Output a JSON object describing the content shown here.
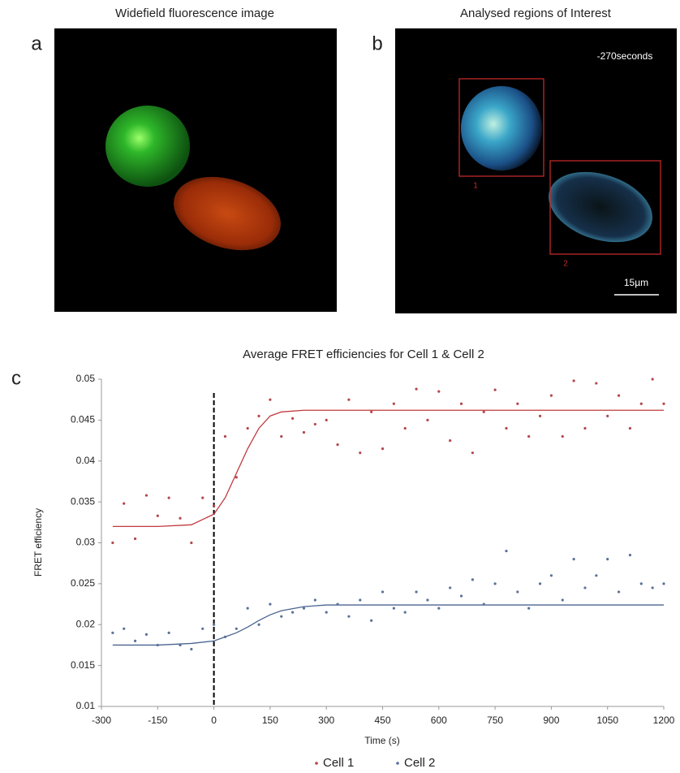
{
  "panels": [
    {
      "label": "a",
      "title": "Widefield fluorescence image"
    },
    {
      "label": "b",
      "title": "Analysed regions of Interest",
      "timestamp": "-270seconds",
      "regions": [
        "1",
        "2"
      ],
      "scale_bar": "15µm"
    },
    {
      "label": "c"
    }
  ],
  "chart_data": {
    "type": "scatter",
    "title": "Average FRET efficiencies for Cell 1 & Cell 2",
    "xlabel": "Time (s)",
    "ylabel": "FRET efficiency",
    "x": [
      -270,
      -240,
      -210,
      -180,
      -150,
      -120,
      -90,
      -60,
      -30,
      0,
      30,
      60,
      90,
      120,
      150,
      180,
      210,
      240,
      270,
      300,
      330,
      360,
      390,
      420,
      450,
      480,
      510,
      540,
      570,
      600,
      630,
      660,
      690,
      720,
      750,
      780,
      810,
      840,
      870,
      900,
      930,
      960,
      990,
      1020,
      1050,
      1080,
      1110,
      1140,
      1170,
      1200
    ],
    "series": [
      {
        "name": "Cell 1",
        "color": "#b5474b",
        "values": [
          0.03,
          0.0348,
          0.0305,
          0.0358,
          0.0333,
          0.0355,
          0.033,
          0.03,
          0.0355,
          0.0345,
          0.043,
          0.038,
          0.044,
          0.0455,
          0.0475,
          0.043,
          0.0452,
          0.0435,
          0.0445,
          0.045,
          0.042,
          0.0475,
          0.041,
          0.046,
          0.0415,
          0.047,
          0.044,
          0.0488,
          0.045,
          0.0485,
          0.0425,
          0.047,
          0.041,
          0.046,
          0.0487,
          0.044,
          0.047,
          0.043,
          0.0455,
          0.048,
          0.043,
          0.0498,
          0.044,
          0.0495,
          0.0455,
          0.048,
          0.044,
          0.047,
          0.05,
          0.047
        ]
      },
      {
        "name": "Cell 2",
        "color": "#5a7199",
        "values": [
          0.019,
          0.0195,
          0.018,
          0.0188,
          0.0175,
          0.019,
          0.0175,
          0.017,
          0.0195,
          0.02,
          0.0185,
          0.0195,
          0.022,
          0.02,
          0.0225,
          0.021,
          0.0215,
          0.022,
          0.023,
          0.0215,
          0.0225,
          0.021,
          0.023,
          0.0205,
          0.024,
          0.022,
          0.0215,
          0.024,
          0.023,
          0.022,
          0.0245,
          0.0235,
          0.0255,
          0.0225,
          0.025,
          0.029,
          0.024,
          0.022,
          0.025,
          0.026,
          0.023,
          0.028,
          0.0245,
          0.026,
          0.028,
          0.024,
          0.0285,
          0.025,
          0.0245,
          0.025
        ]
      }
    ],
    "fits": [
      {
        "color": "#c0393f",
        "x": [
          -270,
          -150,
          -60,
          0,
          30,
          60,
          90,
          120,
          150,
          180,
          240,
          300,
          450,
          600,
          900,
          1200
        ],
        "values": [
          0.032,
          0.032,
          0.0322,
          0.0335,
          0.0355,
          0.0385,
          0.0415,
          0.044,
          0.0455,
          0.046,
          0.0462,
          0.0462,
          0.0462,
          0.0462,
          0.0462,
          0.0462
        ]
      },
      {
        "color": "#4a6490",
        "x": [
          -270,
          -150,
          -60,
          0,
          30,
          60,
          90,
          120,
          150,
          180,
          240,
          300,
          450,
          600,
          900,
          1200
        ],
        "values": [
          0.0175,
          0.0175,
          0.0177,
          0.018,
          0.0185,
          0.019,
          0.0197,
          0.0205,
          0.0212,
          0.0217,
          0.0222,
          0.0224,
          0.0224,
          0.0224,
          0.0224,
          0.0224
        ]
      }
    ],
    "vline": 0,
    "xlim": [
      -300,
      1200
    ],
    "ylim": [
      0.01,
      0.05
    ],
    "xticks": [
      -300,
      -150,
      0,
      150,
      300,
      450,
      600,
      750,
      900,
      1050,
      1200
    ],
    "yticks": [
      0.01,
      0.015,
      0.02,
      0.025,
      0.03,
      0.035,
      0.04,
      0.045,
      0.05
    ],
    "grid": false,
    "legend": "bottom"
  }
}
